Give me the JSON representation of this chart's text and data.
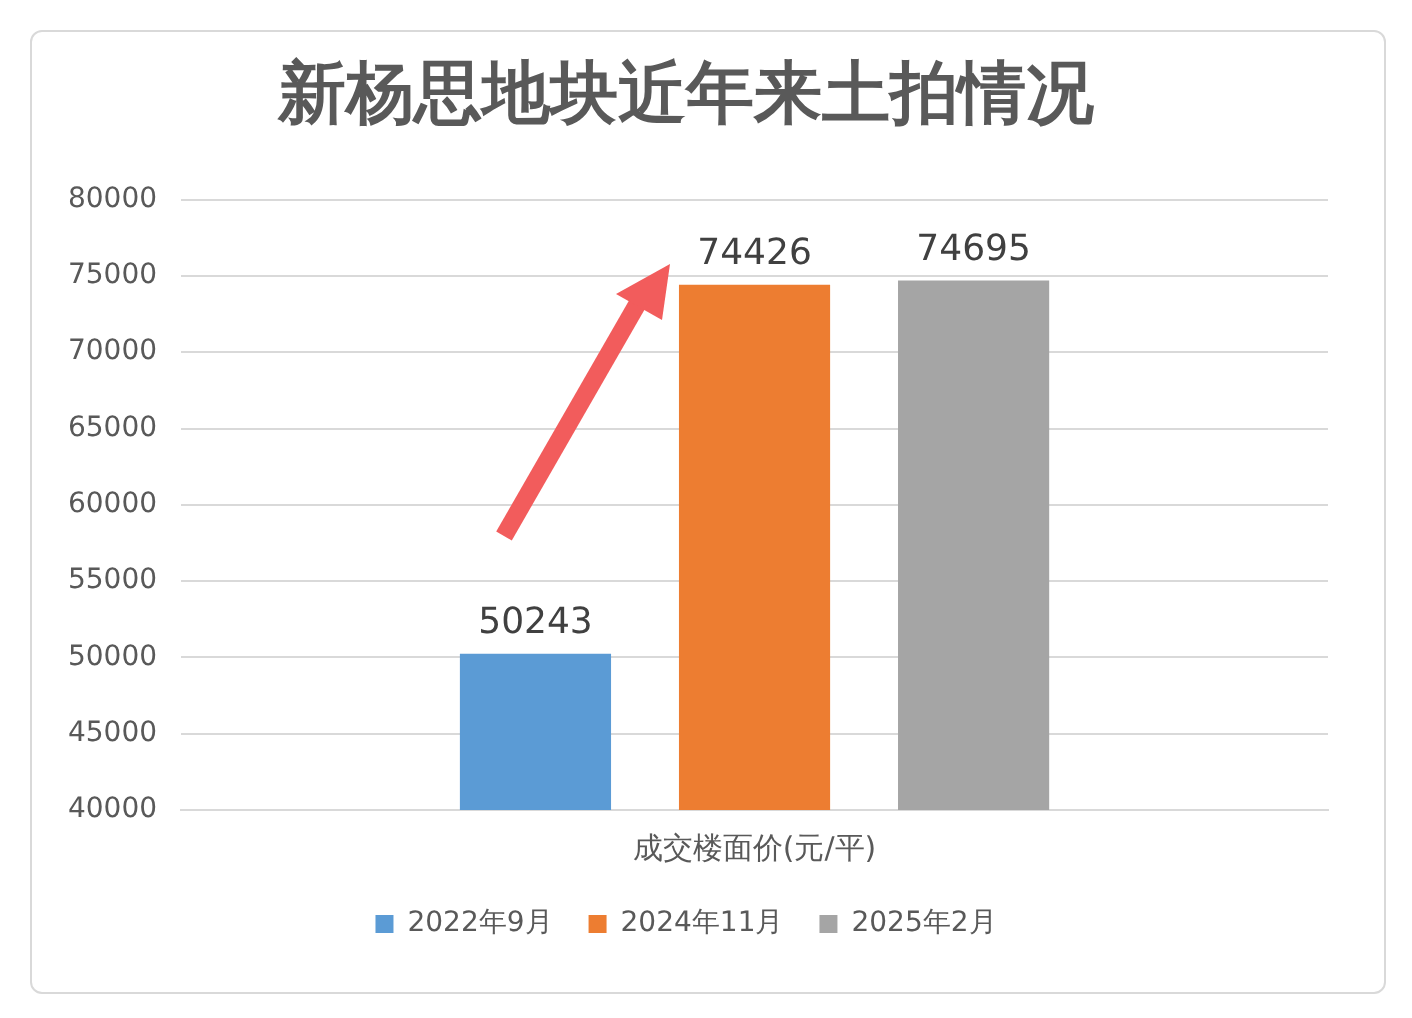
{
  "chart_data": {
    "type": "bar",
    "title": "新杨思地块近年来土拍情况",
    "categories": [
      "成交楼面价(元/平)"
    ],
    "series": [
      {
        "name": "2022年9月",
        "color": "#5b9bd5",
        "values": [
          50243
        ]
      },
      {
        "name": "2024年11月",
        "color": "#ed7d31",
        "values": [
          74426
        ]
      },
      {
        "name": "2025年2月",
        "color": "#a5a5a5",
        "values": [
          74695
        ]
      }
    ],
    "ylim": [
      40000,
      80000
    ],
    "yticks": [
      40000,
      45000,
      50000,
      55000,
      60000,
      65000,
      70000,
      75000,
      80000
    ],
    "grid": "y",
    "legend": "bottom",
    "data_labels": true
  }
}
